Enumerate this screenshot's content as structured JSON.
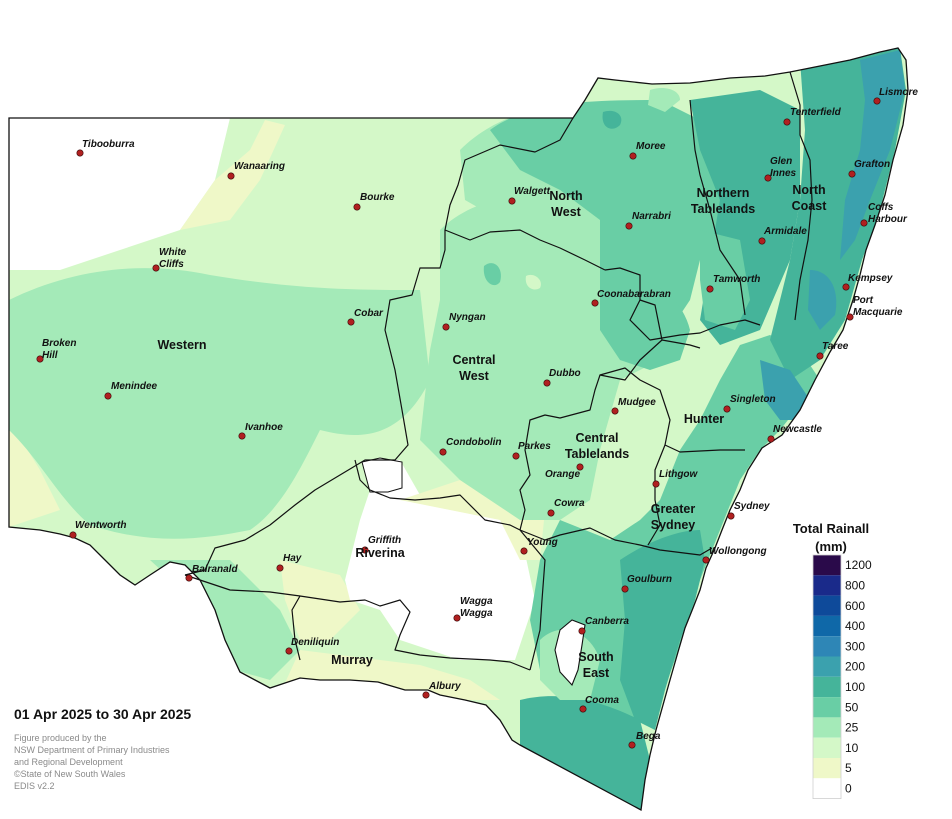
{
  "map": {
    "towns": [
      {
        "name": "Tibooburra",
        "lines": [
          "Tibooburra"
        ]
      },
      {
        "name": "Wanaaring",
        "lines": [
          "Wanaaring"
        ]
      },
      {
        "name": "Bourke",
        "lines": [
          "Bourke"
        ]
      },
      {
        "name": "White Cliffs",
        "lines": [
          "White",
          "Cliffs"
        ]
      },
      {
        "name": "Cobar",
        "lines": [
          "Cobar"
        ]
      },
      {
        "name": "Broken Hill",
        "lines": [
          "Broken",
          "Hill"
        ]
      },
      {
        "name": "Menindee",
        "lines": [
          "Menindee"
        ]
      },
      {
        "name": "Ivanhoe",
        "lines": [
          "Ivanhoe"
        ]
      },
      {
        "name": "Wentworth",
        "lines": [
          "Wentworth"
        ]
      },
      {
        "name": "Balranald",
        "lines": [
          "Balranald"
        ]
      },
      {
        "name": "Hay",
        "lines": [
          "Hay"
        ]
      },
      {
        "name": "Griffith",
        "lines": [
          "Griffith"
        ]
      },
      {
        "name": "Deniliquin",
        "lines": [
          "Deniliquin"
        ]
      },
      {
        "name": "Wagga Wagga",
        "lines": [
          "Wagga",
          "Wagga"
        ]
      },
      {
        "name": "Albury",
        "lines": [
          "Albury"
        ]
      },
      {
        "name": "Young",
        "lines": [
          "Young"
        ]
      },
      {
        "name": "Cowra",
        "lines": [
          "Cowra"
        ]
      },
      {
        "name": "Orange",
        "lines": [
          "Orange"
        ]
      },
      {
        "name": "Parkes",
        "lines": [
          "Parkes"
        ]
      },
      {
        "name": "Condobolin",
        "lines": [
          "Condobolin"
        ]
      },
      {
        "name": "Nyngan",
        "lines": [
          "Nyngan"
        ]
      },
      {
        "name": "Dubbo",
        "lines": [
          "Dubbo"
        ]
      },
      {
        "name": "Walgett",
        "lines": [
          "Walgett"
        ]
      },
      {
        "name": "Moree",
        "lines": [
          "Moree"
        ]
      },
      {
        "name": "Narrabri",
        "lines": [
          "Narrabri"
        ]
      },
      {
        "name": "Coonabarabran",
        "lines": [
          "Coonabarabran"
        ]
      },
      {
        "name": "Tamworth",
        "lines": [
          "Tamworth"
        ]
      },
      {
        "name": "Mudgee",
        "lines": [
          "Mudgee"
        ]
      },
      {
        "name": "Lithgow",
        "lines": [
          "Lithgow"
        ]
      },
      {
        "name": "Sydney",
        "lines": [
          "Sydney"
        ]
      },
      {
        "name": "Wollongong",
        "lines": [
          "Wollongong"
        ]
      },
      {
        "name": "Goulburn",
        "lines": [
          "Goulburn"
        ]
      },
      {
        "name": "Canberra",
        "lines": [
          "Canberra"
        ]
      },
      {
        "name": "Cooma",
        "lines": [
          "Cooma"
        ]
      },
      {
        "name": "Bega",
        "lines": [
          "Bega"
        ]
      },
      {
        "name": "Tenterfield",
        "lines": [
          "Tenterfield"
        ]
      },
      {
        "name": "Lismore",
        "lines": [
          "Lismore"
        ]
      },
      {
        "name": "Glen Innes",
        "lines": [
          "Glen",
          "Innes"
        ]
      },
      {
        "name": "Grafton",
        "lines": [
          "Grafton"
        ]
      },
      {
        "name": "Armidale",
        "lines": [
          "Armidale"
        ]
      },
      {
        "name": "Coffs Harbour",
        "lines": [
          "Coffs",
          "Harbour"
        ]
      },
      {
        "name": "Kempsey",
        "lines": [
          "Kempsey"
        ]
      },
      {
        "name": "Port Macquarie",
        "lines": [
          "Port",
          "Macquarie"
        ]
      },
      {
        "name": "Taree",
        "lines": [
          "Taree"
        ]
      },
      {
        "name": "Singleton",
        "lines": [
          "Singleton"
        ]
      },
      {
        "name": "Newcastle",
        "lines": [
          "Newcastle"
        ]
      }
    ],
    "regions": [
      {
        "name": "Western",
        "lines": [
          "Western"
        ]
      },
      {
        "name": "North West",
        "lines": [
          "North",
          "West"
        ]
      },
      {
        "name": "Central West",
        "lines": [
          "Central",
          "West"
        ]
      },
      {
        "name": "Northern Tablelands",
        "lines": [
          "Northern",
          "Tablelands"
        ]
      },
      {
        "name": "North Coast",
        "lines": [
          "North",
          "Coast"
        ]
      },
      {
        "name": "Hunter",
        "lines": [
          "Hunter"
        ]
      },
      {
        "name": "Central Tablelands",
        "lines": [
          "Central",
          "Tablelands"
        ]
      },
      {
        "name": "Greater Sydney",
        "lines": [
          "Greater",
          "Sydney"
        ]
      },
      {
        "name": "Riverina",
        "lines": [
          "Riverina"
        ]
      },
      {
        "name": "Murray",
        "lines": [
          "Murray"
        ]
      },
      {
        "name": "South East",
        "lines": [
          "South",
          "East"
        ]
      }
    ]
  },
  "legend": {
    "title_line1": "Total Rainall",
    "title_line2": "(mm)",
    "bins": [
      {
        "label": "1200",
        "color": "#2a0a4a"
      },
      {
        "label": "800",
        "color": "#1a2a8a"
      },
      {
        "label": "600",
        "color": "#0e4a9a"
      },
      {
        "label": "400",
        "color": "#0f68a8"
      },
      {
        "label": "300",
        "color": "#2e86b6"
      },
      {
        "label": "200",
        "color": "#3ba1ae"
      },
      {
        "label": "100",
        "color": "#45b49a"
      },
      {
        "label": "50",
        "color": "#69cea5"
      },
      {
        "label": "25",
        "color": "#a4eab8"
      },
      {
        "label": "10",
        "color": "#d4f8c8"
      },
      {
        "label": "5",
        "color": "#eff8c8"
      },
      {
        "label": "0",
        "color": "#ffffff"
      }
    ]
  },
  "date_range": "01 Apr 2025 to 30 Apr 2025",
  "credits": [
    "Figure produced by the",
    "NSW Department of Primary Industries",
    "and Regional Development",
    "©State of New South Wales",
    "EDIS v2.2"
  ],
  "colors": {
    "town_dot": "#b02020",
    "border": "#111111"
  }
}
